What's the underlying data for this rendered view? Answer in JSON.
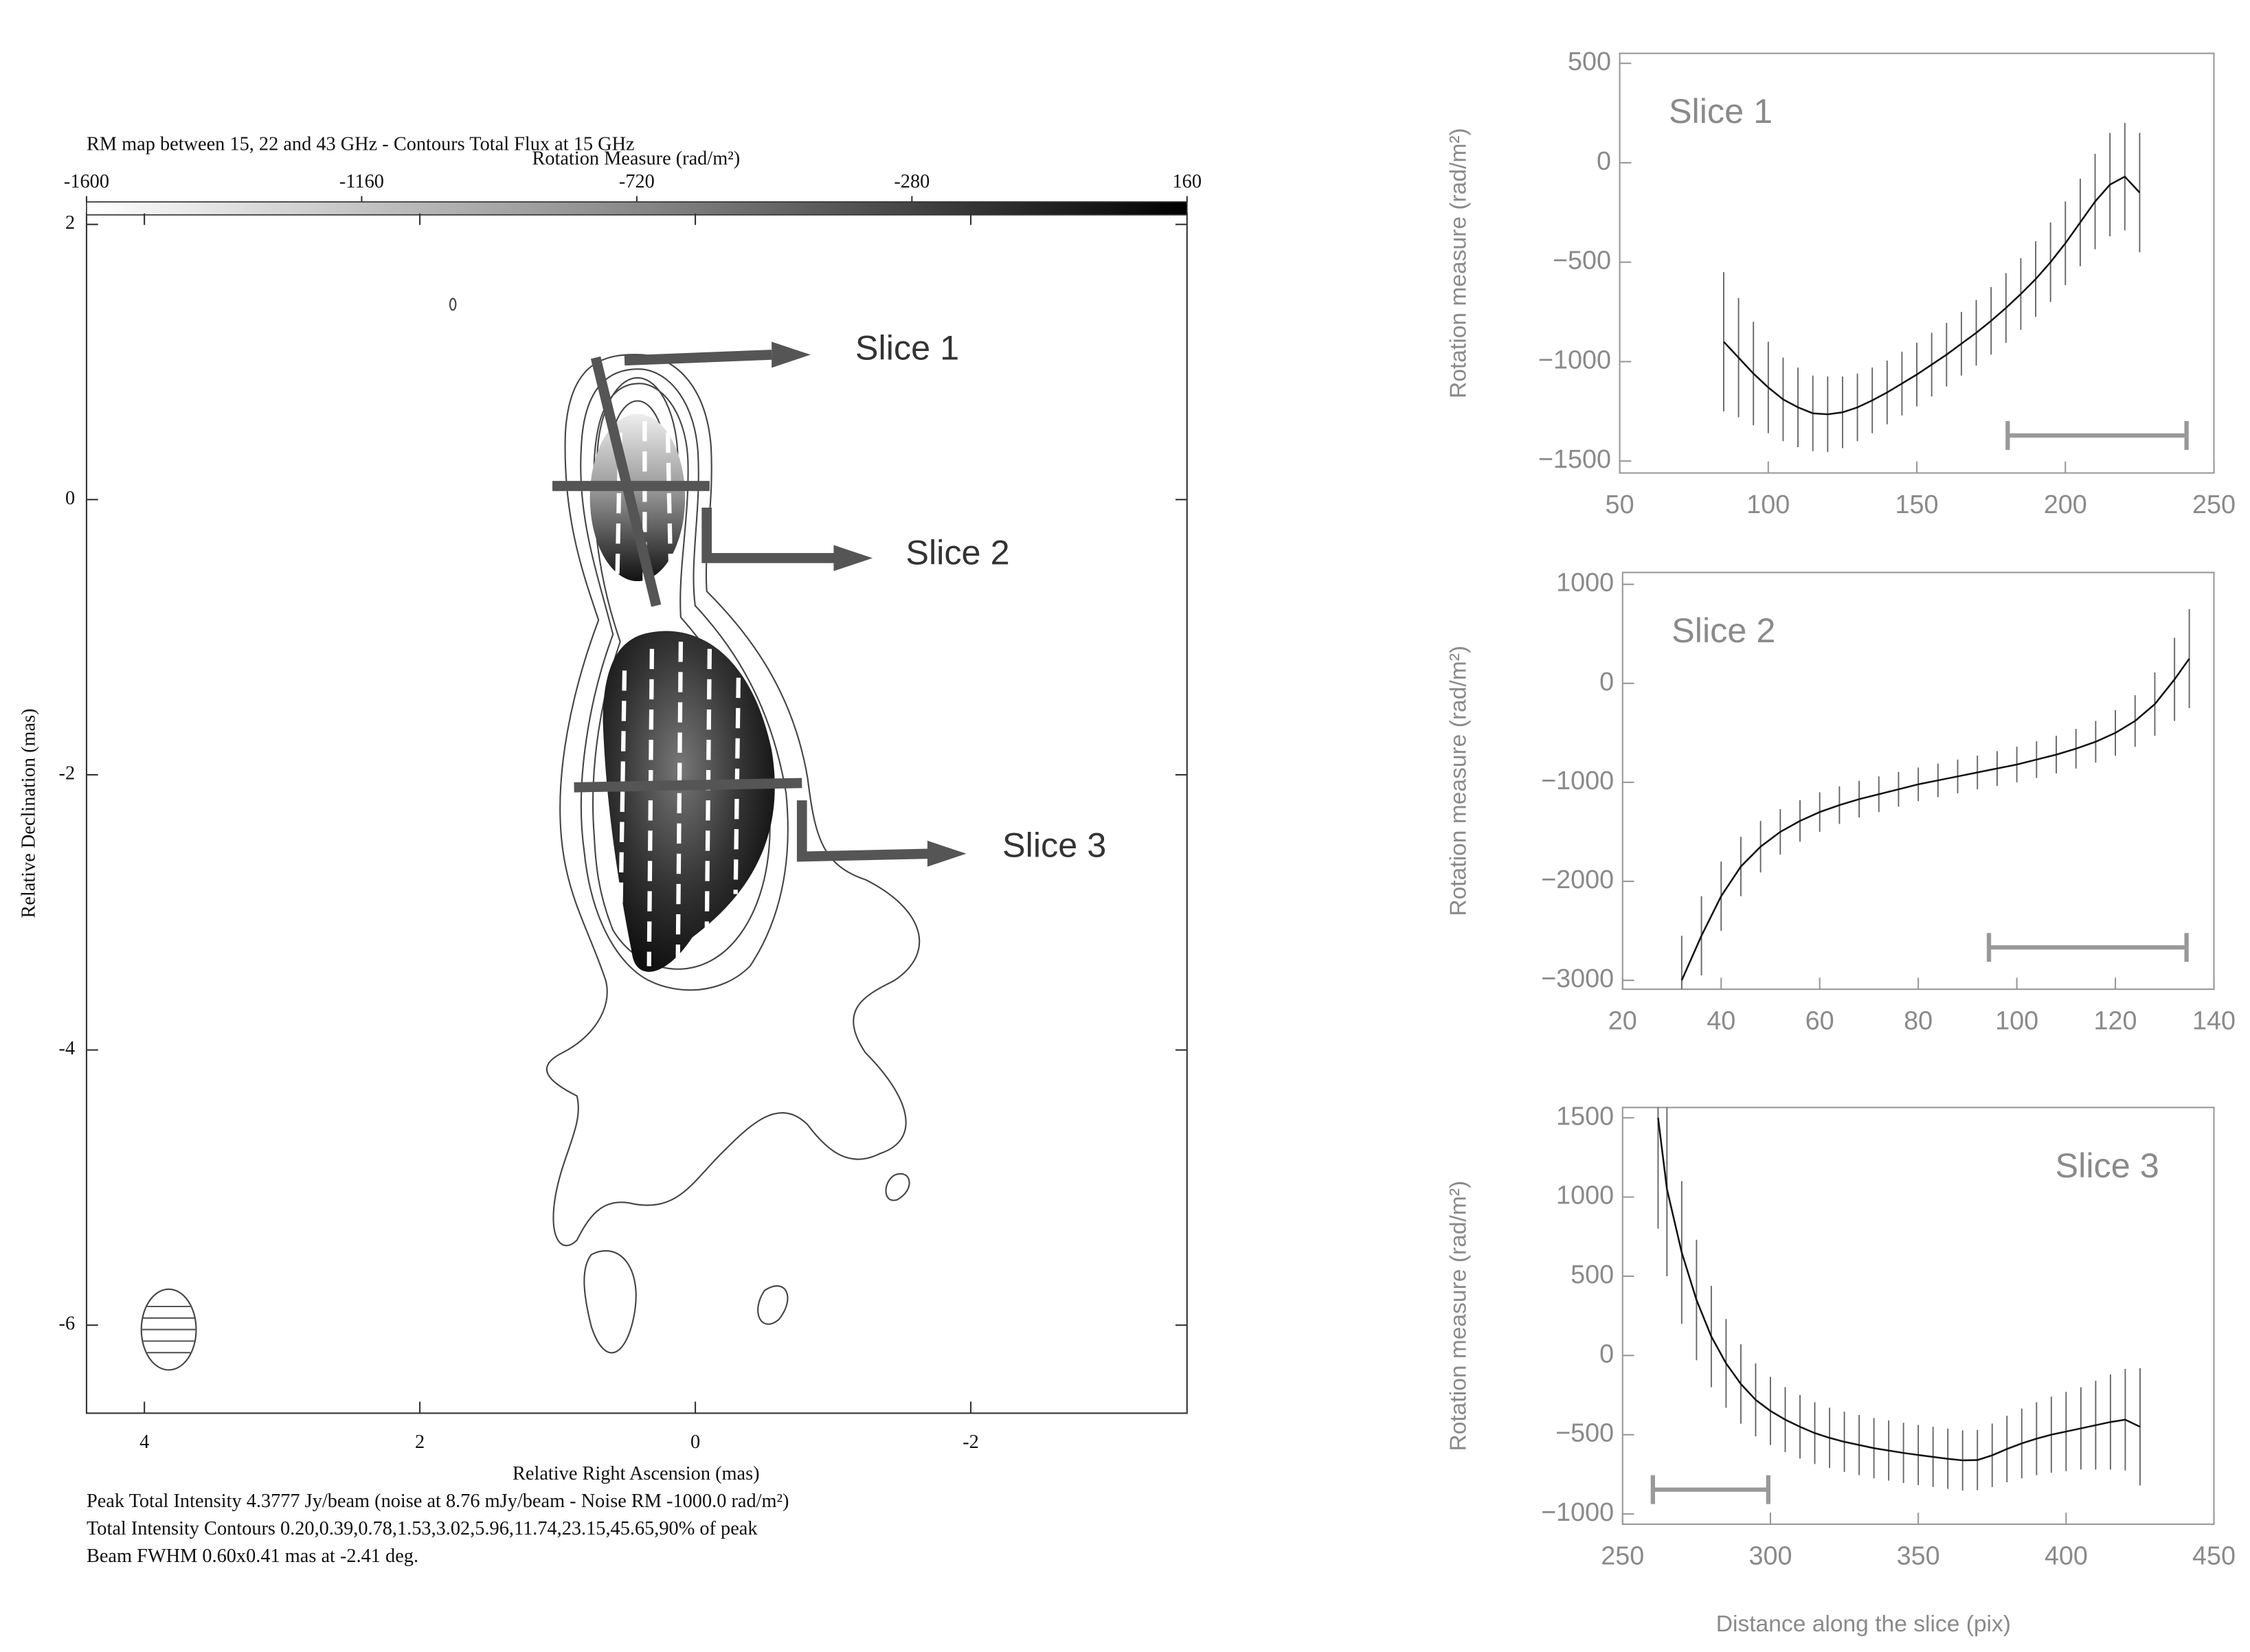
{
  "chart_data": [
    {
      "type": "map",
      "title": "RM map between 15, 22 and 43 GHz - Contours Total Flux at 15 GHz",
      "colorbar_label": "Rotation Measure (rad/m²)",
      "colorbar_lim": [
        -1600,
        160
      ],
      "colorbar_ticks": [
        -1600,
        -1160,
        -720,
        -280,
        160
      ],
      "xlabel": "Relative Right Ascension (mas)",
      "ylabel": "Relative Declination (mas)",
      "xlim": [
        4.42,
        -3.57
      ],
      "xticks": [
        4,
        2,
        0,
        -2
      ],
      "ylim": [
        -6.64,
        2.08
      ],
      "yticks": [
        2,
        0,
        -2,
        -4,
        -6
      ],
      "annotations": [
        "Slice 1",
        "Slice 2",
        "Slice 3"
      ],
      "notes": [
        "Peak Total Intensity 4.3777 Jy/beam (noise at 8.76 mJy/beam - Noise RM -1000.0 rad/m²)",
        "Total Intensity Contours 0.20,0.39,0.78,1.53,3.02,5.96,11.74,23.15,45.65,90% of peak",
        "Beam FWHM 0.60x0.41 mas at -2.41 deg."
      ]
    },
    {
      "type": "errorline",
      "title": "Slice 1",
      "ylabel": "Rotation measure (rad/m²)",
      "xlim": [
        50,
        250
      ],
      "xticks": [
        50,
        100,
        150,
        200,
        250
      ],
      "ylim": [
        -1560,
        550
      ],
      "yticks": [
        500,
        0,
        {
          "value": -500,
          "label": "−500"
        },
        {
          "value": -1000,
          "label": "−1000"
        },
        {
          "value": -1500,
          "label": "−1500"
        }
      ],
      "x": [
        85,
        90,
        95,
        100,
        105,
        110,
        115,
        120,
        125,
        130,
        135,
        140,
        145,
        150,
        155,
        160,
        165,
        170,
        175,
        180,
        185,
        190,
        195,
        200,
        205,
        210,
        215,
        220,
        225
      ],
      "values": [
        -900,
        -980,
        -1060,
        -1130,
        -1190,
        -1230,
        -1260,
        -1265,
        -1255,
        -1230,
        -1195,
        -1155,
        -1110,
        -1065,
        -1015,
        -965,
        -910,
        -855,
        -795,
        -730,
        -660,
        -585,
        -500,
        -405,
        -300,
        -195,
        -110,
        -70,
        -150
      ],
      "errors": [
        350,
        300,
        260,
        230,
        210,
        200,
        190,
        190,
        180,
        170,
        165,
        160,
        160,
        160,
        160,
        160,
        160,
        165,
        170,
        175,
        180,
        190,
        200,
        210,
        220,
        240,
        260,
        270,
        300
      ],
      "color": "#111111",
      "error_color": "#666666"
    },
    {
      "type": "errorline",
      "title": "Slice 2",
      "ylabel": "Rotation measure (rad/m²)",
      "xlim": [
        20,
        140
      ],
      "xticks": [
        20,
        40,
        60,
        80,
        100,
        120,
        140
      ],
      "ylim": [
        -3090,
        1120
      ],
      "yticks": [
        1000,
        0,
        {
          "value": -1000,
          "label": "−1000"
        },
        {
          "value": -2000,
          "label": "−2000"
        },
        {
          "value": -3000,
          "label": "−3000"
        }
      ],
      "x": [
        32,
        36,
        40,
        44,
        48,
        52,
        56,
        60,
        64,
        68,
        72,
        76,
        80,
        84,
        88,
        92,
        96,
        100,
        104,
        108,
        112,
        116,
        120,
        124,
        128,
        132,
        135
      ],
      "values": [
        -3000,
        -2550,
        -2150,
        -1850,
        -1650,
        -1500,
        -1390,
        -1300,
        -1230,
        -1170,
        -1120,
        -1070,
        -1020,
        -980,
        -940,
        -900,
        -860,
        -820,
        -770,
        -720,
        -660,
        -590,
        -500,
        -380,
        -210,
        40,
        250
      ],
      "errors": [
        450,
        400,
        350,
        300,
        260,
        230,
        210,
        200,
        190,
        185,
        180,
        175,
        170,
        170,
        170,
        170,
        175,
        180,
        185,
        190,
        200,
        210,
        230,
        260,
        320,
        420,
        500
      ],
      "color": "#111111",
      "error_color": "#666666"
    },
    {
      "type": "errorline",
      "title": "Slice 3",
      "ylabel": "Rotation measure (rad/m²)",
      "xlabel": "Distance along the slice (pix)",
      "xlim": [
        250,
        450
      ],
      "xticks": [
        250,
        300,
        350,
        400,
        450
      ],
      "ylim": [
        -1065,
        1565
      ],
      "yticks": [
        1500,
        1000,
        500,
        0,
        {
          "value": -500,
          "label": "−500"
        },
        {
          "value": -1000,
          "label": "−1000"
        }
      ],
      "x": [
        262,
        265,
        270,
        275,
        280,
        285,
        290,
        295,
        300,
        305,
        310,
        315,
        320,
        325,
        330,
        335,
        340,
        345,
        350,
        355,
        360,
        365,
        370,
        375,
        380,
        385,
        390,
        395,
        400,
        405,
        410,
        415,
        420,
        425
      ],
      "values": [
        1500,
        1050,
        650,
        350,
        120,
        -50,
        -180,
        -280,
        -350,
        -405,
        -450,
        -490,
        -520,
        -545,
        -565,
        -585,
        -600,
        -615,
        -628,
        -640,
        -652,
        -662,
        -660,
        -630,
        -590,
        -555,
        -525,
        -500,
        -480,
        -460,
        -440,
        -420,
        -405,
        -450
      ],
      "errors": [
        700,
        550,
        450,
        380,
        320,
        280,
        250,
        230,
        215,
        205,
        200,
        195,
        190,
        190,
        190,
        190,
        190,
        190,
        190,
        190,
        190,
        190,
        190,
        200,
        210,
        220,
        230,
        240,
        250,
        260,
        280,
        300,
        320,
        370
      ],
      "color": "#111111",
      "error_color": "#666666"
    }
  ]
}
